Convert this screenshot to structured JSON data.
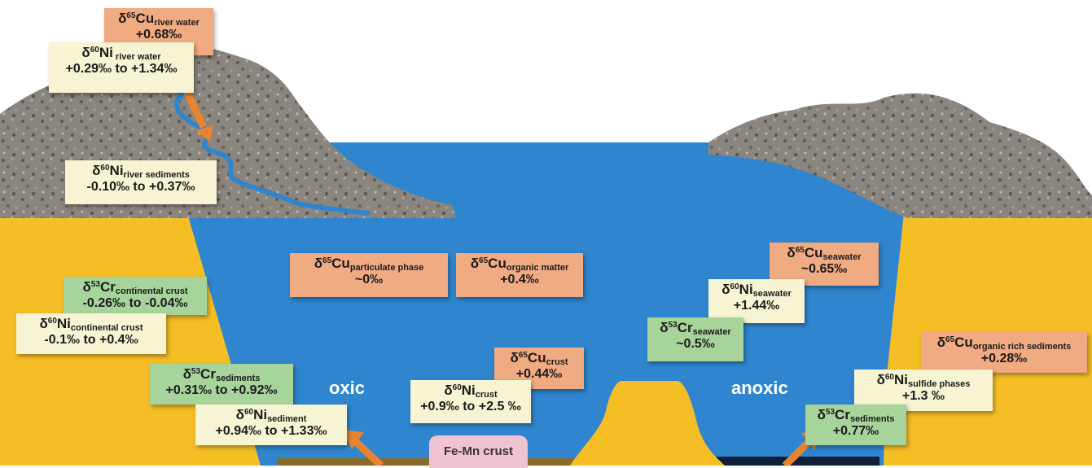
{
  "diagram": {
    "colors": {
      "ocean": "#2f86cf",
      "land_rock": "#8a8480",
      "continent": "#f5be25",
      "cu_box": "#f0ab82",
      "ni_box": "#f6f4d2",
      "cr_box": "#a6d49a",
      "arrow": "#e8842f"
    },
    "labels": {
      "oxic": "oxic",
      "anoxic": "anoxic",
      "fe_mn_crust": "Fe-Mn crust"
    },
    "boxes": {
      "cu_river_water": {
        "element": "δ",
        "mass": "65",
        "symbol": "Cu",
        "subscript": "river water",
        "value": "+0.68‰"
      },
      "ni_river_water": {
        "element": "δ",
        "mass": "60",
        "symbol": "Ni",
        "subscript": " river water",
        "value": "+0.29‰ to +1.34‰"
      },
      "ni_river_sediments": {
        "element": "δ",
        "mass": "60",
        "symbol": "Ni",
        "subscript": "river sediments",
        "value": "-0.10‰ to +0.37‰"
      },
      "cu_particulate": {
        "element": "δ",
        "mass": "65",
        "symbol": "Cu",
        "subscript": "particulate phase",
        "value": "~0‰"
      },
      "cu_organic_matter": {
        "element": "δ",
        "mass": "65",
        "symbol": "Cu",
        "subscript": "organic matter",
        "value": "+0.4‰"
      },
      "cr_continental_crust": {
        "element": "δ",
        "mass": "53",
        "symbol": "Cr",
        "subscript": "continental crust",
        "value": "-0.26‰ to -0.04‰"
      },
      "ni_continental_crust": {
        "element": "δ",
        "mass": "60",
        "symbol": "Ni",
        "subscript": "continental crust",
        "value": "-0.1‰ to +0.4‰"
      },
      "cr_sediments_oxic": {
        "element": "δ",
        "mass": "53",
        "symbol": "Cr",
        "subscript": "sediments",
        "value": "+0.31‰ to +0.92‰"
      },
      "ni_sediment": {
        "element": "δ",
        "mass": "60",
        "symbol": "Ni",
        "subscript": "sediment",
        "value": "+0.94‰ to +1.33‰"
      },
      "cu_crust": {
        "element": "δ",
        "mass": "65",
        "symbol": "Cu",
        "subscript": "crust",
        "value": "+0.44‰"
      },
      "ni_crust": {
        "element": "δ",
        "mass": "60",
        "symbol": "Ni",
        "subscript": "crust",
        "value": "+0.9‰ to +2.5 ‰"
      },
      "cu_seawater": {
        "element": "δ",
        "mass": "65",
        "symbol": "Cu",
        "subscript": "seawater",
        "value": "~0.65‰"
      },
      "ni_seawater": {
        "element": "δ",
        "mass": "60",
        "symbol": "Ni",
        "subscript": "seawater",
        "value": "+1.44‰"
      },
      "cr_seawater": {
        "element": "δ",
        "mass": "53",
        "symbol": "Cr",
        "subscript": "seawater",
        "value": "~0.5‰"
      },
      "cu_organic_rich_sediments": {
        "element": "δ",
        "mass": "65",
        "symbol": "Cu",
        "subscript": "organic rich sediments",
        "value": "+0.28‰"
      },
      "ni_sulfide_phases": {
        "element": "δ",
        "mass": "60",
        "symbol": "Ni",
        "subscript": "sulfide phases",
        "value": "+1.3 ‰"
      },
      "cr_sediments_anoxic": {
        "element": "δ",
        "mass": "53",
        "symbol": "Cr",
        "subscript": "sediments",
        "value": "+0.77‰"
      }
    }
  }
}
